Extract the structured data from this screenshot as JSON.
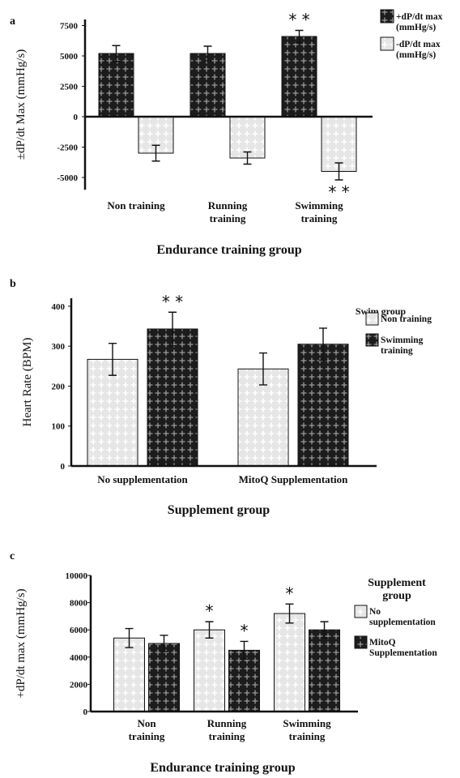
{
  "chart_data": [
    {
      "panel_label": "a",
      "type": "bar",
      "title": "",
      "xlabel": "Endurance training group",
      "ylabel": "±dP/dt Max (mmHg/s)",
      "ylim": [
        -6000,
        8000
      ],
      "yticks": [
        "7500",
        "5000",
        "2500",
        "0",
        "-2500",
        "-5000"
      ],
      "yticks_values": [
        7500,
        5000,
        2500,
        0,
        -2500,
        -5000
      ],
      "categories": [
        [
          "Non training"
        ],
        [
          "Running",
          "training"
        ],
        [
          "Swimming",
          "training"
        ]
      ],
      "series": [
        {
          "name_lines": [
            "+dP/dt max",
            "(mmHg/s)"
          ],
          "pattern": "dark",
          "values": [
            5200,
            5200,
            6600
          ],
          "errors": [
            650,
            600,
            500
          ],
          "marks": [
            "",
            "",
            "* *"
          ]
        },
        {
          "name_lines": [
            "-dP/dt max",
            "(mmHg/s)"
          ],
          "pattern": "light",
          "values": [
            -3000,
            -3400,
            -4500
          ],
          "errors": [
            650,
            500,
            700
          ],
          "marks": [
            "",
            "",
            "* *"
          ]
        }
      ],
      "legend_placement": "right",
      "grid": false
    },
    {
      "panel_label": "b",
      "type": "bar",
      "title": "",
      "xlabel": "Supplement group",
      "ylabel": "Heart Rate (BPM)",
      "ylim": [
        0,
        420
      ],
      "yticks": [
        "400",
        "300",
        "200",
        "100",
        "0"
      ],
      "yticks_values": [
        400,
        300,
        200,
        100,
        0
      ],
      "categories": [
        [
          "No supplementation"
        ],
        [
          "MitoQ Supplementation"
        ]
      ],
      "legend_title_lines": [
        "Swim group"
      ],
      "series": [
        {
          "name_lines": [
            "Non training"
          ],
          "pattern": "light",
          "values": [
            267,
            243
          ],
          "errors": [
            40,
            40
          ],
          "marks": [
            "",
            ""
          ]
        },
        {
          "name_lines": [
            "Swimming",
            "training"
          ],
          "pattern": "dark",
          "values": [
            343,
            305
          ],
          "errors": [
            42,
            40
          ],
          "marks": [
            "* *",
            ""
          ]
        }
      ],
      "legend_placement": "right",
      "grid": false
    },
    {
      "panel_label": "c",
      "type": "bar",
      "title": "",
      "xlabel": "Endurance training group",
      "ylabel": "+dP/dt max (mmHg/s)",
      "ylim": [
        0,
        10000
      ],
      "yticks": [
        "10000",
        "8000",
        "6000",
        "4000",
        "2000",
        "0"
      ],
      "yticks_values": [
        10000,
        8000,
        6000,
        4000,
        2000,
        0
      ],
      "categories": [
        [
          "Non",
          "training"
        ],
        [
          "Running",
          "training"
        ],
        [
          "Swimming",
          "training"
        ]
      ],
      "legend_title_lines": [
        "Supplement",
        "group"
      ],
      "series": [
        {
          "name_lines": [
            "No",
            "supplementation"
          ],
          "pattern": "light",
          "values": [
            5400,
            6000,
            7200
          ],
          "errors": [
            700,
            600,
            700
          ],
          "marks": [
            "",
            "*",
            "*"
          ]
        },
        {
          "name_lines": [
            "MitoQ",
            "Supplementation"
          ],
          "pattern": "dark",
          "values": [
            5000,
            4500,
            6000
          ],
          "errors": [
            600,
            650,
            600
          ],
          "marks": [
            "",
            "*",
            ""
          ]
        }
      ],
      "legend_placement": "right",
      "grid": false
    }
  ]
}
